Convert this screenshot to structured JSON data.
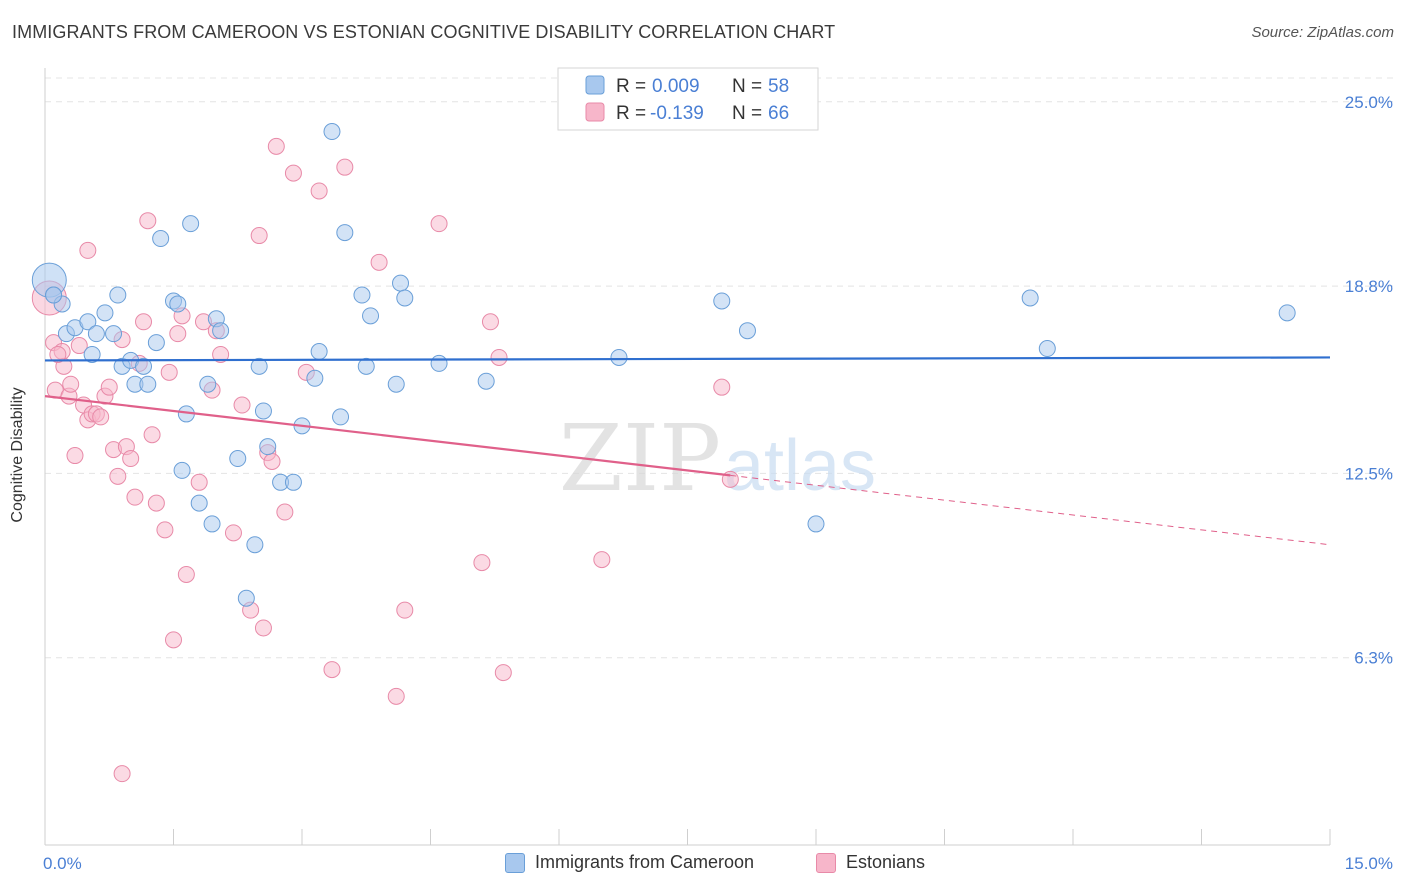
{
  "title": "IMMIGRANTS FROM CAMEROON VS ESTONIAN COGNITIVE DISABILITY CORRELATION CHART",
  "source": "Source: ZipAtlas.com",
  "watermark": {
    "zip": "ZIP",
    "atlas": "atlas"
  },
  "colors": {
    "blue_fill": "#a8c8ee",
    "blue_stroke": "#6a9fd8",
    "blue_line": "#2f6fcf",
    "pink_fill": "#f7b6ca",
    "pink_stroke": "#e88aa8",
    "pink_line": "#e0608a",
    "axis_text": "#4a7fd4",
    "grid": "#e4e4e4"
  },
  "legend_top": [
    {
      "r_label": "R =",
      "r_value": "0.009",
      "n_label": "N =",
      "n_value": "58"
    },
    {
      "r_label": "R =",
      "r_value": "-0.139",
      "n_label": "N =",
      "n_value": "66"
    }
  ],
  "legend_bottom": [
    "Immigrants from Cameroon",
    "Estonians"
  ],
  "chart_data": {
    "type": "scatter",
    "title": "IMMIGRANTS FROM CAMEROON VS ESTONIAN COGNITIVE DISABILITY CORRELATION CHART",
    "xlabel": "",
    "ylabel": "Cognitive Disability",
    "xlim": [
      0,
      15
    ],
    "ylim": [
      0,
      25.8
    ],
    "x_tick_labels": [
      "0.0%",
      "15.0%"
    ],
    "y_ticks": [
      6.3,
      12.5,
      18.8,
      25.0
    ],
    "y_tick_labels": [
      "6.3%",
      "12.5%",
      "18.8%",
      "25.0%"
    ],
    "grid": true,
    "legend_placement": "top-center",
    "series": [
      {
        "name": "Immigrants from Cameroon",
        "r": 0.009,
        "n": 58,
        "trend": {
          "x": [
            0,
            15
          ],
          "y": [
            16.3,
            16.4
          ],
          "dashed_from": null
        },
        "points": [
          [
            0.05,
            19.0
          ],
          [
            0.1,
            18.5
          ],
          [
            0.2,
            18.2
          ],
          [
            0.25,
            17.2
          ],
          [
            0.35,
            17.4
          ],
          [
            0.5,
            17.6
          ],
          [
            0.55,
            16.5
          ],
          [
            0.6,
            17.2
          ],
          [
            0.7,
            17.9
          ],
          [
            0.8,
            17.2
          ],
          [
            0.85,
            18.5
          ],
          [
            0.9,
            16.1
          ],
          [
            1.0,
            16.3
          ],
          [
            1.05,
            15.5
          ],
          [
            1.15,
            16.1
          ],
          [
            1.2,
            15.5
          ],
          [
            1.3,
            16.9
          ],
          [
            1.35,
            20.4
          ],
          [
            1.5,
            18.3
          ],
          [
            1.55,
            18.2
          ],
          [
            1.6,
            12.6
          ],
          [
            1.65,
            14.5
          ],
          [
            1.7,
            20.9
          ],
          [
            1.8,
            11.5
          ],
          [
            1.9,
            15.5
          ],
          [
            1.95,
            10.8
          ],
          [
            2.0,
            17.7
          ],
          [
            2.05,
            17.3
          ],
          [
            2.25,
            13.0
          ],
          [
            2.35,
            8.3
          ],
          [
            2.45,
            10.1
          ],
          [
            2.5,
            16.1
          ],
          [
            2.55,
            14.6
          ],
          [
            2.6,
            13.4
          ],
          [
            2.75,
            12.2
          ],
          [
            2.9,
            12.2
          ],
          [
            3.0,
            14.1
          ],
          [
            3.15,
            15.7
          ],
          [
            3.2,
            16.6
          ],
          [
            3.35,
            24.0
          ],
          [
            3.45,
            14.4
          ],
          [
            3.5,
            20.6
          ],
          [
            3.7,
            18.5
          ],
          [
            3.75,
            16.1
          ],
          [
            3.8,
            17.8
          ],
          [
            4.1,
            15.5
          ],
          [
            4.15,
            18.9
          ],
          [
            4.2,
            18.4
          ],
          [
            4.6,
            16.2
          ],
          [
            5.15,
            15.6
          ],
          [
            6.7,
            16.4
          ],
          [
            7.9,
            18.3
          ],
          [
            8.2,
            17.3
          ],
          [
            9.0,
            10.8
          ],
          [
            11.5,
            18.4
          ],
          [
            11.7,
            16.7
          ],
          [
            14.5,
            17.9
          ],
          [
            0.1,
            18.5
          ]
        ]
      },
      {
        "name": "Estonians",
        "r": -0.139,
        "n": 66,
        "trend": {
          "x": [
            0,
            15
          ],
          "y": [
            15.1,
            10.1
          ],
          "dashed_from": 8.0
        },
        "points": [
          [
            0.05,
            18.4
          ],
          [
            0.1,
            16.9
          ],
          [
            0.12,
            15.3
          ],
          [
            0.2,
            16.6
          ],
          [
            0.22,
            16.1
          ],
          [
            0.28,
            15.1
          ],
          [
            0.3,
            15.5
          ],
          [
            0.35,
            13.1
          ],
          [
            0.4,
            16.8
          ],
          [
            0.45,
            14.8
          ],
          [
            0.5,
            14.3
          ],
          [
            0.5,
            20.0
          ],
          [
            0.55,
            14.5
          ],
          [
            0.6,
            14.5
          ],
          [
            0.65,
            14.4
          ],
          [
            0.7,
            15.1
          ],
          [
            0.75,
            15.4
          ],
          [
            0.8,
            13.3
          ],
          [
            0.85,
            12.4
          ],
          [
            0.9,
            17.0
          ],
          [
            0.95,
            13.4
          ],
          [
            1.0,
            13.0
          ],
          [
            1.05,
            11.7
          ],
          [
            1.1,
            16.2
          ],
          [
            1.15,
            17.6
          ],
          [
            1.2,
            21.0
          ],
          [
            1.25,
            13.8
          ],
          [
            1.3,
            11.5
          ],
          [
            1.4,
            10.6
          ],
          [
            1.45,
            15.9
          ],
          [
            1.5,
            6.9
          ],
          [
            1.55,
            17.2
          ],
          [
            1.6,
            17.8
          ],
          [
            1.65,
            9.1
          ],
          [
            1.8,
            12.2
          ],
          [
            1.85,
            17.6
          ],
          [
            1.95,
            15.3
          ],
          [
            2.0,
            17.3
          ],
          [
            2.05,
            16.5
          ],
          [
            2.2,
            10.5
          ],
          [
            2.3,
            14.8
          ],
          [
            2.4,
            7.9
          ],
          [
            2.5,
            20.5
          ],
          [
            2.55,
            7.3
          ],
          [
            2.6,
            13.2
          ],
          [
            2.65,
            12.9
          ],
          [
            2.7,
            23.5
          ],
          [
            2.8,
            11.2
          ],
          [
            2.9,
            22.6
          ],
          [
            3.05,
            15.9
          ],
          [
            3.2,
            22.0
          ],
          [
            3.35,
            5.9
          ],
          [
            3.5,
            22.8
          ],
          [
            3.9,
            19.6
          ],
          [
            4.1,
            5.0
          ],
          [
            4.2,
            7.9
          ],
          [
            4.6,
            20.9
          ],
          [
            5.1,
            9.5
          ],
          [
            5.2,
            17.6
          ],
          [
            5.3,
            16.4
          ],
          [
            5.35,
            5.8
          ],
          [
            6.5,
            9.6
          ],
          [
            7.9,
            15.4
          ],
          [
            8.0,
            12.3
          ],
          [
            0.9,
            2.4
          ],
          [
            0.15,
            16.5
          ]
        ]
      }
    ]
  }
}
